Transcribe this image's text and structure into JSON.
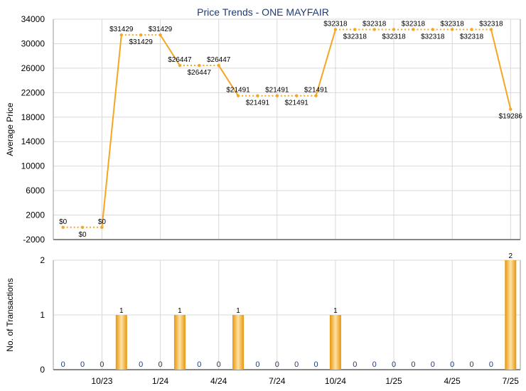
{
  "chart_data": [
    {
      "type": "line",
      "title": "Price Trends - ONE MAYFAIR",
      "ylabel": "Average Price",
      "ylim": [
        -2000,
        34000
      ],
      "yticks": [
        -2000,
        2000,
        6000,
        10000,
        14000,
        18000,
        22000,
        26000,
        30000,
        34000
      ],
      "x": [
        "2023-08",
        "2023-09",
        "2023-10",
        "2023-11",
        "2023-12",
        "2024-01",
        "2024-02",
        "2024-03",
        "2024-04",
        "2024-05",
        "2024-06",
        "2024-07",
        "2024-08",
        "2024-09",
        "2024-10",
        "2024-11",
        "2024-12",
        "2025-01",
        "2025-02",
        "2025-03",
        "2025-04",
        "2025-05",
        "2025-06",
        "2025-07"
      ],
      "series": [
        {
          "values": [
            0,
            0,
            0,
            31429,
            31429,
            31429,
            26447,
            26447,
            26447,
            21491,
            21491,
            21491,
            21491,
            21491,
            32318,
            32318,
            32318,
            32318,
            32318,
            32318,
            32318,
            32318,
            32318,
            19286
          ],
          "point_labels": [
            "$0",
            "$0",
            "$0",
            "$31429",
            "$31429",
            "$31429",
            "$26447",
            "$26447",
            "$26447",
            "$21491",
            "$21491",
            "$21491",
            "$21491",
            "$21491",
            "$32318",
            "$32318",
            "$32318",
            "$32318",
            "$32318",
            "$32318",
            "$32318",
            "$32318",
            "$32318",
            "$19286"
          ]
        }
      ],
      "grid": true
    },
    {
      "type": "bar",
      "ylabel": "No. of Transactions",
      "ylim": [
        0,
        2
      ],
      "yticks": [
        0,
        1,
        2
      ],
      "x": [
        "2023-08",
        "2023-09",
        "2023-10",
        "2023-11",
        "2023-12",
        "2024-01",
        "2024-02",
        "2024-03",
        "2024-04",
        "2024-05",
        "2024-06",
        "2024-07",
        "2024-08",
        "2024-09",
        "2024-10",
        "2024-11",
        "2024-12",
        "2025-01",
        "2025-02",
        "2025-03",
        "2025-04",
        "2025-05",
        "2025-06",
        "2025-07"
      ],
      "values": [
        0,
        0,
        0,
        1,
        0,
        0,
        1,
        0,
        0,
        1,
        0,
        0,
        0,
        0,
        1,
        0,
        0,
        0,
        0,
        0,
        0,
        0,
        0,
        2
      ],
      "xtick_labels": [
        {
          "index": 2,
          "label": "10/23"
        },
        {
          "index": 5,
          "label": "1/24"
        },
        {
          "index": 8,
          "label": "4/24"
        },
        {
          "index": 11,
          "label": "7/24"
        },
        {
          "index": 14,
          "label": "10/24"
        },
        {
          "index": 17,
          "label": "1/25"
        },
        {
          "index": 20,
          "label": "4/25"
        },
        {
          "index": 23,
          "label": "7/25"
        }
      ],
      "grid": true
    }
  ],
  "colors": {
    "line": "#f5a623",
    "bar_dark": "#e8950c",
    "bar_light": "#fde3a4",
    "title": "#1f3b73",
    "count_label": "#1f3b73",
    "grid": "#d9d9d9"
  }
}
